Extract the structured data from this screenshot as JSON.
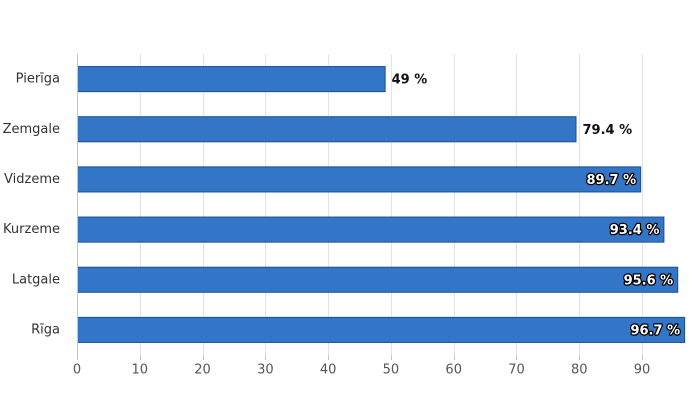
{
  "chart_data": {
    "type": "bar",
    "orientation": "horizontal",
    "categories": [
      "Pierīga",
      "Zemgale",
      "Vidzeme",
      "Kurzeme",
      "Latgale",
      "Rīga"
    ],
    "values": [
      49,
      79.4,
      89.7,
      93.4,
      95.6,
      96.7
    ],
    "data_labels": [
      "49 %",
      "79.4 %",
      "89.7 %",
      "93.4 %",
      "95.6 %",
      "96.7 %"
    ],
    "xlim": [
      0,
      97
    ],
    "xticks": [
      0,
      10,
      20,
      30,
      40,
      50,
      60,
      70,
      80,
      90
    ],
    "xtick_labels": [
      "0",
      "10",
      "20",
      "30",
      "40",
      "50",
      "60",
      "70",
      "80",
      "90"
    ],
    "grid": true,
    "legend": "none",
    "bar_color": "#3375c6",
    "bar_border_color": "#1f4f8c",
    "grid_color": "#e3e3e3",
    "axis_color": "#c5c5c5"
  }
}
